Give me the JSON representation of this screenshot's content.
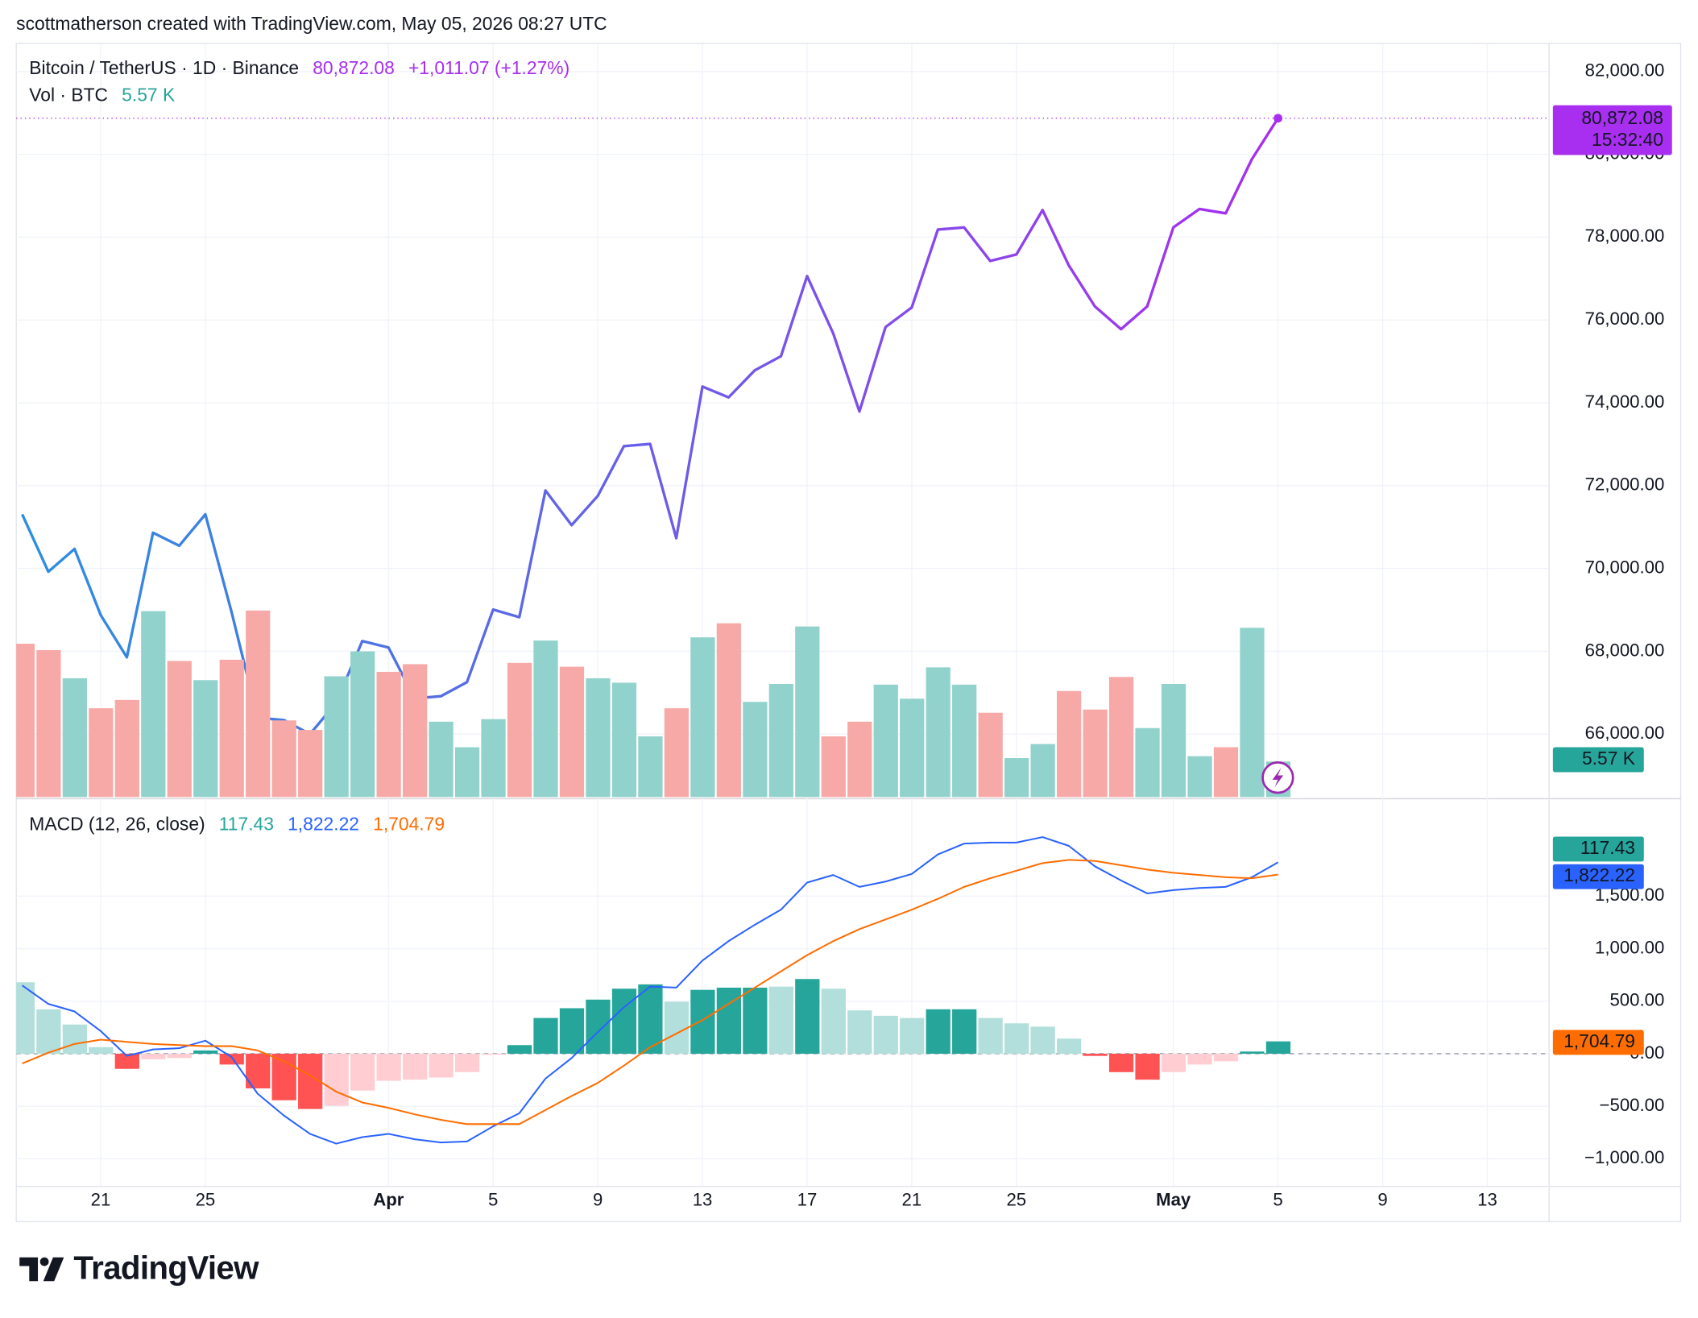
{
  "header": "scottmatherson created with TradingView.com, May 05, 2026 08:27 UTC",
  "footer": "TradingView",
  "chart_data": [
    {
      "type": "line",
      "title": "Bitcoin / TetherUS · 1D · Binance",
      "last_label": "80,872.08",
      "change": "+1,011.07 (+1.27%)",
      "countdown": "15:32:40",
      "gradient": [
        "#2b8fe0",
        "#a82ef0"
      ],
      "ylim": [
        64480,
        82680
      ],
      "yticks": [
        {
          "value": 66000,
          "label": "66,000.00"
        },
        {
          "value": 68000,
          "label": "68,000.00"
        },
        {
          "value": 70000,
          "label": "70,000.00"
        },
        {
          "value": 72000,
          "label": "72,000.00"
        },
        {
          "value": 74000,
          "label": "74,000.00"
        },
        {
          "value": 76000,
          "label": "76,000.00"
        },
        {
          "value": 78000,
          "label": "78,000.00"
        },
        {
          "value": 80000,
          "label": "80,000.00"
        },
        {
          "value": 82000,
          "label": "82,000.00"
        }
      ],
      "grid": true,
      "values": [
        71307,
        69922,
        70471,
        68876,
        67856,
        70863,
        70549,
        71307,
        68954,
        66392,
        66340,
        66000,
        66758,
        68248,
        68092,
        66863,
        66915,
        67255,
        69007,
        68824,
        71882,
        71046,
        71752,
        72954,
        73007,
        70732,
        74392,
        74131,
        74784,
        75124,
        77059,
        75673,
        73791,
        75830,
        76301,
        78183,
        78235,
        77425,
        77582,
        78654,
        77320,
        76327,
        75778,
        76327,
        78235,
        78680,
        78575,
        79882,
        80872.08,
        null,
        null,
        null,
        null,
        null,
        null,
        null,
        null,
        null,
        null
      ]
    },
    {
      "type": "bar",
      "title": "Vol · BTC",
      "last_label": "5.57 K",
      "ylim": [
        0,
        40
      ],
      "values": [
        24.0,
        23.0,
        18.6,
        13.9,
        15.2,
        29.1,
        21.3,
        18.3,
        21.5,
        29.2,
        12.0,
        10.5,
        18.9,
        22.8,
        19.6,
        20.8,
        11.8,
        7.8,
        12.2,
        21.0,
        24.5,
        20.4,
        18.6,
        17.9,
        9.5,
        13.9,
        25.0,
        27.2,
        14.9,
        17.7,
        26.7,
        9.5,
        11.8,
        17.6,
        15.4,
        20.3,
        17.6,
        13.2,
        6.1,
        8.3,
        16.6,
        13.7,
        18.8,
        10.8,
        17.7,
        6.4,
        7.8,
        26.5,
        5.57,
        null,
        null,
        null,
        null,
        null,
        null,
        null,
        null,
        null,
        null
      ],
      "colors": [
        "#f7a9a7",
        "#f7a9a7",
        "#92d2cc",
        "#f7a9a7",
        "#f7a9a7",
        "#92d2cc",
        "#f7a9a7",
        "#92d2cc",
        "#f7a9a7",
        "#f7a9a7",
        "#f7a9a7",
        "#f7a9a7",
        "#92d2cc",
        "#92d2cc",
        "#f7a9a7",
        "#f7a9a7",
        "#92d2cc",
        "#92d2cc",
        "#92d2cc",
        "#f7a9a7",
        "#92d2cc",
        "#f7a9a7",
        "#92d2cc",
        "#92d2cc",
        "#92d2cc",
        "#f7a9a7",
        "#92d2cc",
        "#f7a9a7",
        "#92d2cc",
        "#92d2cc",
        "#92d2cc",
        "#f7a9a7",
        "#f7a9a7",
        "#92d2cc",
        "#92d2cc",
        "#92d2cc",
        "#92d2cc",
        "#f7a9a7",
        "#92d2cc",
        "#92d2cc",
        "#f7a9a7",
        "#f7a9a7",
        "#f7a9a7",
        "#92d2cc",
        "#92d2cc",
        "#92d2cc",
        "#f7a9a7",
        "#92d2cc",
        "#92d2cc",
        null,
        null,
        null,
        null,
        null,
        null,
        null,
        null,
        null,
        null
      ],
      "badge_color": "#26a69a"
    },
    {
      "type": "macd",
      "title": "MACD (12, 26, close)",
      "ylim": [
        -1258,
        2381
      ],
      "yticks": [
        {
          "value": -1000,
          "label": "−1,000.00"
        },
        {
          "value": -500,
          "label": "−500.00"
        },
        {
          "value": 0,
          "label": "0.00"
        },
        {
          "value": 500,
          "label": "500.00"
        },
        {
          "value": 1000,
          "label": "1,000.00"
        },
        {
          "value": 1500,
          "label": "1,500.00"
        }
      ],
      "grid": true,
      "categories": [
        null,
        null,
        null,
        "21",
        null,
        null,
        null,
        "25",
        null,
        null,
        null,
        null,
        null,
        null,
        "Apr",
        null,
        null,
        null,
        "5",
        null,
        null,
        null,
        "9",
        null,
        null,
        null,
        "13",
        null,
        null,
        null,
        "17",
        null,
        null,
        null,
        "21",
        null,
        null,
        null,
        "25",
        null,
        null,
        null,
        null,
        null,
        "May",
        null,
        null,
        null,
        "5",
        null,
        null,
        null,
        "9",
        null,
        null,
        null,
        "13",
        null,
        null
      ],
      "series": [
        {
          "name": "Histogram",
          "last_label": "117.43",
          "color": "#26a69a",
          "values": [
            680,
            423,
            278,
            62,
            -144,
            -52,
            -41,
            31,
            -103,
            -330,
            -443,
            -526,
            -495,
            -351,
            -258,
            -247,
            -227,
            -175,
            -10,
            82,
            340,
            433,
            515,
            619,
            660,
            495,
            608,
            629,
            629,
            639,
            711,
            619,
            412,
            361,
            340,
            423,
            423,
            340,
            289,
            258,
            144,
            -21,
            -175,
            -247,
            -175,
            -103,
            -72,
            21,
            117.43,
            null,
            null,
            null,
            null,
            null,
            null,
            null,
            null,
            null,
            null
          ],
          "colors": [
            "#b2dfdb",
            "#b2dfdb",
            "#b2dfdb",
            "#b2dfdb",
            "#ff5252",
            "#ffcdd2",
            "#ffcdd2",
            "#26a69a",
            "#ff5252",
            "#ff5252",
            "#ff5252",
            "#ff5252",
            "#ffcdd2",
            "#ffcdd2",
            "#ffcdd2",
            "#ffcdd2",
            "#ffcdd2",
            "#ffcdd2",
            "#ffcdd2",
            "#26a69a",
            "#26a69a",
            "#26a69a",
            "#26a69a",
            "#26a69a",
            "#26a69a",
            "#b2dfdb",
            "#26a69a",
            "#26a69a",
            "#26a69a",
            "#b2dfdb",
            "#26a69a",
            "#b2dfdb",
            "#b2dfdb",
            "#b2dfdb",
            "#b2dfdb",
            "#26a69a",
            "#26a69a",
            "#b2dfdb",
            "#b2dfdb",
            "#b2dfdb",
            "#b2dfdb",
            "#ff5252",
            "#ff5252",
            "#ff5252",
            "#ffcdd2",
            "#ffcdd2",
            "#ffcdd2",
            "#26a69a",
            "#26a69a",
            null,
            null,
            null,
            null,
            null,
            null,
            null,
            null,
            null,
            null
          ]
        },
        {
          "name": "MACD",
          "last_label": "1,822.22",
          "color": "#2962ff",
          "values": [
            650,
            474,
            402,
            216,
            -21,
            41,
            52,
            124,
            -31,
            -381,
            -588,
            -763,
            -856,
            -794,
            -763,
            -814,
            -845,
            -835,
            -691,
            -567,
            -237,
            -41,
            206,
            443,
            639,
            629,
            887,
            1072,
            1227,
            1371,
            1629,
            1701,
            1588,
            1639,
            1711,
            1897,
            2000,
            2010,
            2010,
            2062,
            1979,
            1784,
            1649,
            1526,
            1557,
            1577,
            1588,
            1680,
            1822.22,
            null,
            null,
            null,
            null,
            null,
            null,
            null,
            null,
            null,
            null
          ]
        },
        {
          "name": "Signal",
          "last_label": "1,704.79",
          "color": "#ff6d00",
          "values": [
            -93,
            10,
            93,
            134,
            113,
            93,
            82,
            72,
            72,
            31,
            -72,
            -206,
            -361,
            -464,
            -515,
            -577,
            -629,
            -670,
            -670,
            -670,
            -536,
            -402,
            -278,
            -113,
            62,
            191,
            320,
            474,
            629,
            784,
            938,
            1072,
            1186,
            1278,
            1371,
            1474,
            1588,
            1670,
            1742,
            1814,
            1845,
            1835,
            1794,
            1753,
            1722,
            1701,
            1680,
            1670,
            1704.79,
            null,
            null,
            null,
            null,
            null,
            null,
            null,
            null,
            null,
            null
          ]
        }
      ]
    }
  ]
}
